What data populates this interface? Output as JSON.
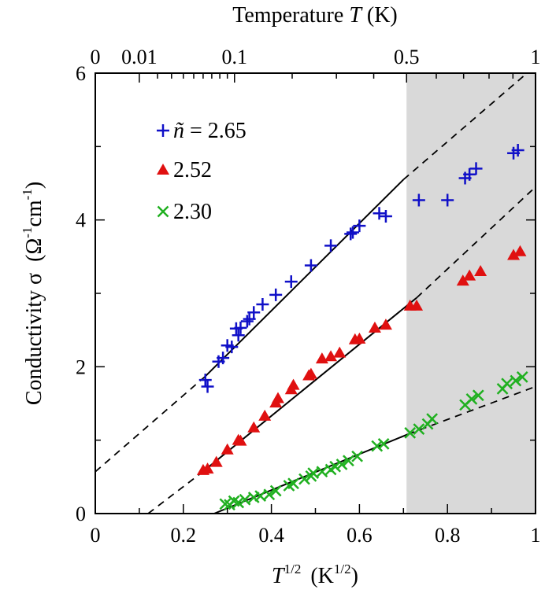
{
  "chart_data": {
    "type": "scatter",
    "xlabel_main": "T",
    "xlabel_exp": "1/2",
    "xlabel_unit": "(K",
    "xlabel_unit_exp": "1/2",
    "xlabel_unit_close": ")",
    "ylabel_main": "Conductivity σ",
    "ylabel_unit": "(Ω",
    "ylabel_unit_exp1": "-1",
    "ylabel_unit_mid": "cm",
    "ylabel_unit_exp2": "-1",
    "ylabel_unit_close": ")",
    "top_axis_label": "Temperature T (K)",
    "top_axis_label_prefix": "Temperature ",
    "top_axis_label_var": "T",
    "top_axis_label_unit": " (K)",
    "xlim": [
      0,
      1
    ],
    "ylim": [
      0,
      6
    ],
    "x_ticks": [
      {
        "value": 0,
        "label": "0"
      },
      {
        "value": 0.2,
        "label": "0.2"
      },
      {
        "value": 0.4,
        "label": "0.4"
      },
      {
        "value": 0.6,
        "label": "0.6"
      },
      {
        "value": 0.8,
        "label": "0.8"
      },
      {
        "value": 1,
        "label": "1"
      }
    ],
    "y_ticks": [
      {
        "value": 0,
        "label": "0"
      },
      {
        "value": 2,
        "label": "2"
      },
      {
        "value": 4,
        "label": "4"
      },
      {
        "value": 6,
        "label": "6"
      }
    ],
    "top_ticks": [
      {
        "value": 0,
        "label": "0"
      },
      {
        "value": 0.01,
        "label": "0.01"
      },
      {
        "value": 0.1,
        "label": "0.1"
      },
      {
        "value": 0.5,
        "label": "0.5"
      },
      {
        "value": 1,
        "label": "1"
      }
    ],
    "shaded_region": {
      "x_from": 0.707,
      "x_to": 1.0,
      "color": "#d9d9d9"
    },
    "legend": {
      "position": "top-left",
      "entries": [
        {
          "label_var": "ñ",
          "label_rest": " = 2.65",
          "series": 0
        },
        {
          "label": "2.52",
          "series": 1
        },
        {
          "label": "2.30",
          "series": 2
        }
      ]
    },
    "series": [
      {
        "color": "#1010c8",
        "marker": "plus",
        "points": [
          [
            0.25,
            1.82
          ],
          [
            0.255,
            1.73
          ],
          [
            0.28,
            2.07
          ],
          [
            0.29,
            2.12
          ],
          [
            0.3,
            2.29
          ],
          [
            0.31,
            2.27
          ],
          [
            0.32,
            2.52
          ],
          [
            0.325,
            2.43
          ],
          [
            0.33,
            2.53
          ],
          [
            0.345,
            2.62
          ],
          [
            0.35,
            2.65
          ],
          [
            0.36,
            2.74
          ],
          [
            0.38,
            2.85
          ],
          [
            0.41,
            2.98
          ],
          [
            0.445,
            3.16
          ],
          [
            0.49,
            3.38
          ],
          [
            0.535,
            3.65
          ],
          [
            0.58,
            3.81
          ],
          [
            0.585,
            3.83
          ],
          [
            0.6,
            3.92
          ],
          [
            0.645,
            4.09
          ],
          [
            0.66,
            4.05
          ],
          [
            0.735,
            4.27
          ],
          [
            0.8,
            4.27
          ],
          [
            0.84,
            4.57
          ],
          [
            0.85,
            4.62
          ],
          [
            0.865,
            4.7
          ],
          [
            0.95,
            4.91
          ],
          [
            0.96,
            4.95
          ]
        ],
        "fit": [
          [
            0.25,
            1.87
          ],
          [
            0.7,
            4.55
          ]
        ],
        "extrapolations": [
          [
            [
              0.0,
              0.57
            ],
            [
              0.25,
              1.87
            ]
          ],
          [
            [
              0.7,
              4.55
            ],
            [
              1.0,
              6.1
            ]
          ]
        ]
      },
      {
        "color": "#e01010",
        "marker": "triangle",
        "points": [
          [
            0.245,
            0.59
          ],
          [
            0.255,
            0.61
          ],
          [
            0.275,
            0.7
          ],
          [
            0.3,
            0.87
          ],
          [
            0.325,
            1.0
          ],
          [
            0.33,
            0.99
          ],
          [
            0.36,
            1.17
          ],
          [
            0.385,
            1.33
          ],
          [
            0.41,
            1.51
          ],
          [
            0.415,
            1.57
          ],
          [
            0.445,
            1.69
          ],
          [
            0.45,
            1.75
          ],
          [
            0.485,
            1.88
          ],
          [
            0.49,
            1.9
          ],
          [
            0.515,
            2.11
          ],
          [
            0.535,
            2.14
          ],
          [
            0.555,
            2.19
          ],
          [
            0.59,
            2.37
          ],
          [
            0.6,
            2.38
          ],
          [
            0.635,
            2.53
          ],
          [
            0.66,
            2.57
          ],
          [
            0.715,
            2.83
          ],
          [
            0.73,
            2.83
          ],
          [
            0.835,
            3.17
          ],
          [
            0.85,
            3.24
          ],
          [
            0.875,
            3.3
          ],
          [
            0.95,
            3.52
          ],
          [
            0.965,
            3.57
          ]
        ],
        "fit": [
          [
            0.24,
            0.55
          ],
          [
            0.73,
            2.94
          ]
        ],
        "extrapolations": [
          [
            [
              0.12,
              0.0
            ],
            [
              0.24,
              0.55
            ]
          ],
          [
            [
              0.73,
              2.94
            ],
            [
              1.0,
              4.45
            ]
          ]
        ]
      },
      {
        "color": "#20b020",
        "marker": "cross",
        "points": [
          [
            0.295,
            0.13
          ],
          [
            0.305,
            0.12
          ],
          [
            0.315,
            0.17
          ],
          [
            0.325,
            0.15
          ],
          [
            0.34,
            0.19
          ],
          [
            0.36,
            0.22
          ],
          [
            0.375,
            0.24
          ],
          [
            0.395,
            0.26
          ],
          [
            0.41,
            0.31
          ],
          [
            0.44,
            0.38
          ],
          [
            0.45,
            0.41
          ],
          [
            0.475,
            0.47
          ],
          [
            0.49,
            0.51
          ],
          [
            0.495,
            0.55
          ],
          [
            0.515,
            0.57
          ],
          [
            0.535,
            0.6
          ],
          [
            0.545,
            0.64
          ],
          [
            0.56,
            0.67
          ],
          [
            0.575,
            0.72
          ],
          [
            0.595,
            0.78
          ],
          [
            0.64,
            0.92
          ],
          [
            0.655,
            0.95
          ],
          [
            0.715,
            1.1
          ],
          [
            0.735,
            1.15
          ],
          [
            0.755,
            1.22
          ],
          [
            0.765,
            1.29
          ],
          [
            0.84,
            1.48
          ],
          [
            0.855,
            1.56
          ],
          [
            0.87,
            1.61
          ],
          [
            0.925,
            1.7
          ],
          [
            0.935,
            1.77
          ],
          [
            0.955,
            1.81
          ],
          [
            0.97,
            1.86
          ]
        ],
        "fit": [
          [
            0.27,
            0.0
          ],
          [
            0.71,
            1.08
          ]
        ],
        "extrapolations": [
          [
            [
              0.71,
              1.08
            ],
            [
              1.0,
              1.73
            ]
          ]
        ]
      }
    ]
  }
}
